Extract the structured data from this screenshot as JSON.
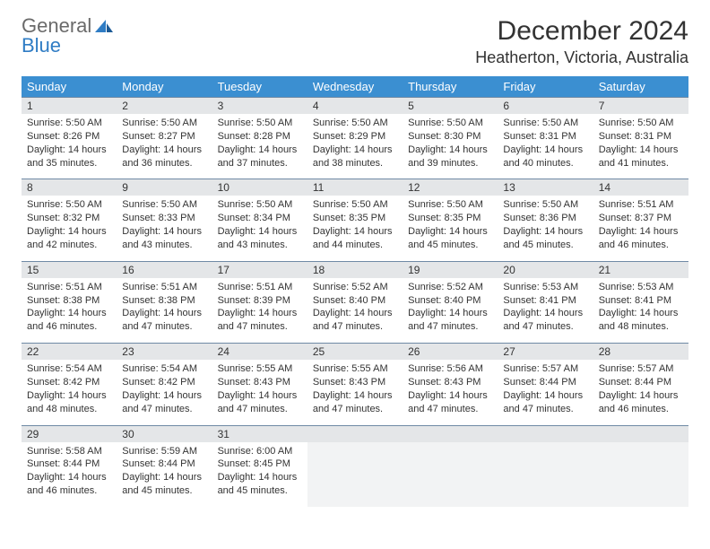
{
  "logo": {
    "word1": "General",
    "word2": "Blue"
  },
  "title": "December 2024",
  "location": "Heatherton, Victoria, Australia",
  "day_headers": [
    "Sunday",
    "Monday",
    "Tuesday",
    "Wednesday",
    "Thursday",
    "Friday",
    "Saturday"
  ],
  "calendar": {
    "header_bg": "#3b8fd1",
    "header_text_color": "#ffffff",
    "daynum_bg": "#e4e6e8",
    "daynum_border_color": "#6f8aa5",
    "cell_bg": "#ffffff",
    "empty_cell_bg": "#f2f3f4",
    "text_color": "#333333",
    "font_size_header": 13,
    "font_size_daynum": 12,
    "font_size_body": 11
  },
  "days": [
    {
      "n": "1",
      "sr": "5:50 AM",
      "ss": "8:26 PM",
      "dl": "14 hours and 35 minutes."
    },
    {
      "n": "2",
      "sr": "5:50 AM",
      "ss": "8:27 PM",
      "dl": "14 hours and 36 minutes."
    },
    {
      "n": "3",
      "sr": "5:50 AM",
      "ss": "8:28 PM",
      "dl": "14 hours and 37 minutes."
    },
    {
      "n": "4",
      "sr": "5:50 AM",
      "ss": "8:29 PM",
      "dl": "14 hours and 38 minutes."
    },
    {
      "n": "5",
      "sr": "5:50 AM",
      "ss": "8:30 PM",
      "dl": "14 hours and 39 minutes."
    },
    {
      "n": "6",
      "sr": "5:50 AM",
      "ss": "8:31 PM",
      "dl": "14 hours and 40 minutes."
    },
    {
      "n": "7",
      "sr": "5:50 AM",
      "ss": "8:31 PM",
      "dl": "14 hours and 41 minutes."
    },
    {
      "n": "8",
      "sr": "5:50 AM",
      "ss": "8:32 PM",
      "dl": "14 hours and 42 minutes."
    },
    {
      "n": "9",
      "sr": "5:50 AM",
      "ss": "8:33 PM",
      "dl": "14 hours and 43 minutes."
    },
    {
      "n": "10",
      "sr": "5:50 AM",
      "ss": "8:34 PM",
      "dl": "14 hours and 43 minutes."
    },
    {
      "n": "11",
      "sr": "5:50 AM",
      "ss": "8:35 PM",
      "dl": "14 hours and 44 minutes."
    },
    {
      "n": "12",
      "sr": "5:50 AM",
      "ss": "8:35 PM",
      "dl": "14 hours and 45 minutes."
    },
    {
      "n": "13",
      "sr": "5:50 AM",
      "ss": "8:36 PM",
      "dl": "14 hours and 45 minutes."
    },
    {
      "n": "14",
      "sr": "5:51 AM",
      "ss": "8:37 PM",
      "dl": "14 hours and 46 minutes."
    },
    {
      "n": "15",
      "sr": "5:51 AM",
      "ss": "8:38 PM",
      "dl": "14 hours and 46 minutes."
    },
    {
      "n": "16",
      "sr": "5:51 AM",
      "ss": "8:38 PM",
      "dl": "14 hours and 47 minutes."
    },
    {
      "n": "17",
      "sr": "5:51 AM",
      "ss": "8:39 PM",
      "dl": "14 hours and 47 minutes."
    },
    {
      "n": "18",
      "sr": "5:52 AM",
      "ss": "8:40 PM",
      "dl": "14 hours and 47 minutes."
    },
    {
      "n": "19",
      "sr": "5:52 AM",
      "ss": "8:40 PM",
      "dl": "14 hours and 47 minutes."
    },
    {
      "n": "20",
      "sr": "5:53 AM",
      "ss": "8:41 PM",
      "dl": "14 hours and 47 minutes."
    },
    {
      "n": "21",
      "sr": "5:53 AM",
      "ss": "8:41 PM",
      "dl": "14 hours and 48 minutes."
    },
    {
      "n": "22",
      "sr": "5:54 AM",
      "ss": "8:42 PM",
      "dl": "14 hours and 48 minutes."
    },
    {
      "n": "23",
      "sr": "5:54 AM",
      "ss": "8:42 PM",
      "dl": "14 hours and 47 minutes."
    },
    {
      "n": "24",
      "sr": "5:55 AM",
      "ss": "8:43 PM",
      "dl": "14 hours and 47 minutes."
    },
    {
      "n": "25",
      "sr": "5:55 AM",
      "ss": "8:43 PM",
      "dl": "14 hours and 47 minutes."
    },
    {
      "n": "26",
      "sr": "5:56 AM",
      "ss": "8:43 PM",
      "dl": "14 hours and 47 minutes."
    },
    {
      "n": "27",
      "sr": "5:57 AM",
      "ss": "8:44 PM",
      "dl": "14 hours and 47 minutes."
    },
    {
      "n": "28",
      "sr": "5:57 AM",
      "ss": "8:44 PM",
      "dl": "14 hours and 46 minutes."
    },
    {
      "n": "29",
      "sr": "5:58 AM",
      "ss": "8:44 PM",
      "dl": "14 hours and 46 minutes."
    },
    {
      "n": "30",
      "sr": "5:59 AM",
      "ss": "8:44 PM",
      "dl": "14 hours and 45 minutes."
    },
    {
      "n": "31",
      "sr": "6:00 AM",
      "ss": "8:45 PM",
      "dl": "14 hours and 45 minutes."
    }
  ],
  "labels": {
    "sunrise": "Sunrise:",
    "sunset": "Sunset:",
    "daylight": "Daylight:"
  }
}
